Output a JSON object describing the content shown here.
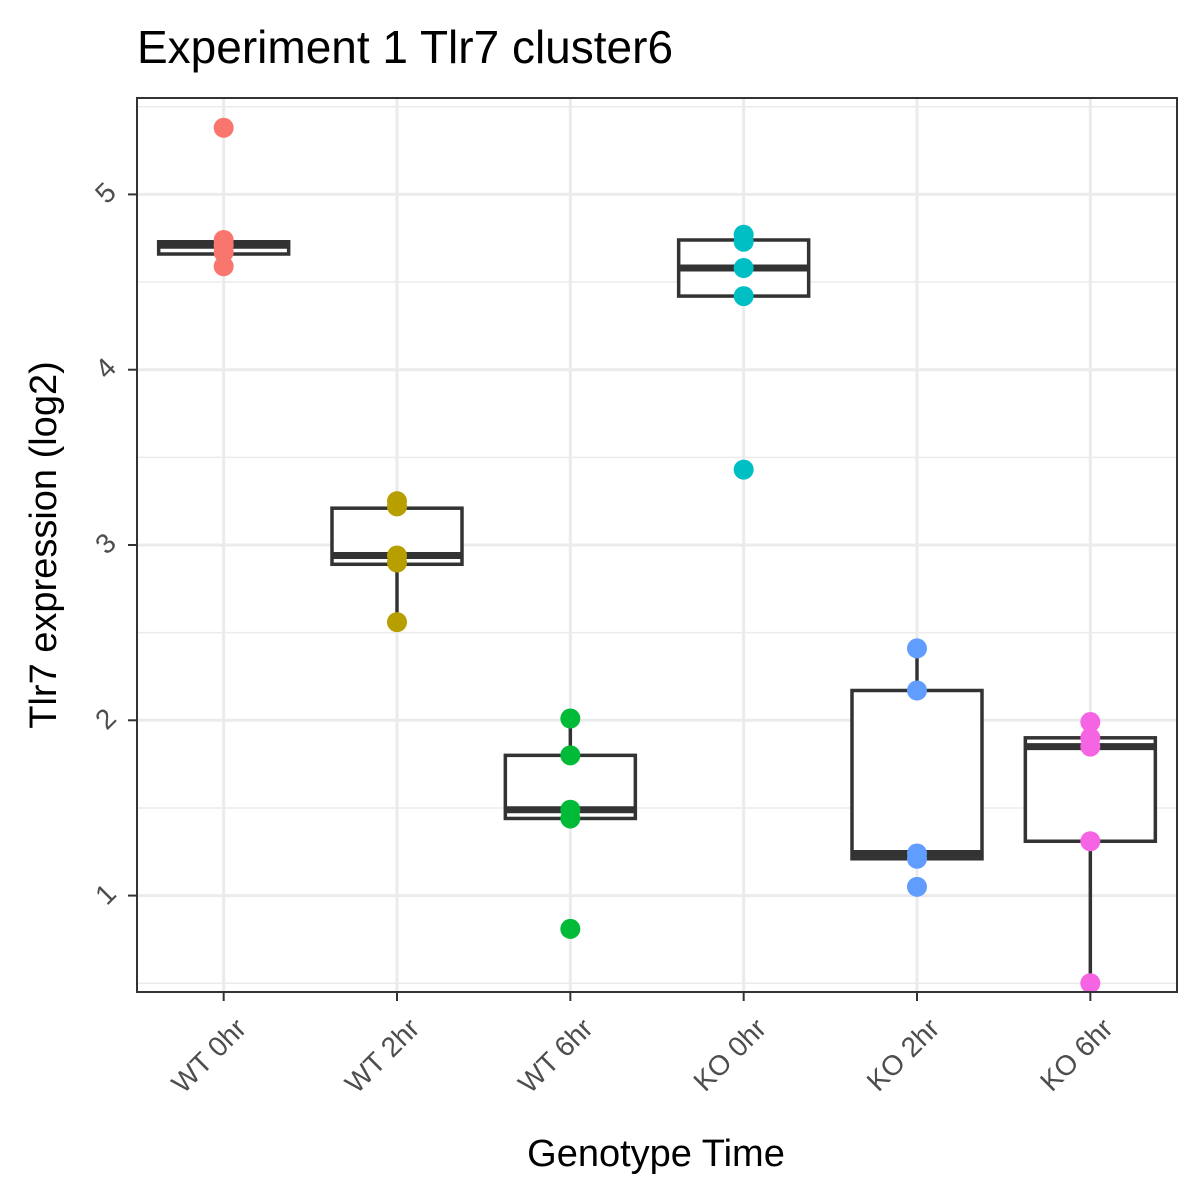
{
  "chart_data": {
    "type": "boxplot",
    "title": "Experiment 1 Tlr7 cluster6",
    "xlabel": "Genotype Time",
    "ylabel": "Tlr7 expression (log2)",
    "ylim": [
      0.45,
      5.55
    ],
    "y_ticks": [
      1,
      2,
      3,
      4,
      5
    ],
    "grid": true,
    "legend": "none",
    "categories": [
      "WT 0hr",
      "WT 2hr",
      "WT 6hr",
      "KO 0hr",
      "KO 2hr",
      "KO 6hr"
    ],
    "colors": [
      "#F8766D",
      "#B79F00",
      "#00BA38",
      "#00BFC4",
      "#619CFF",
      "#F564E3"
    ],
    "boxes": [
      {
        "q1": 4.66,
        "median": 4.71,
        "q3": 4.73,
        "whisker_low": 4.66,
        "whisker_high": 4.73
      },
      {
        "q1": 2.89,
        "median": 2.94,
        "q3": 3.21,
        "whisker_low": 2.56,
        "whisker_high": 3.25
      },
      {
        "q1": 1.44,
        "median": 1.49,
        "q3": 1.8,
        "whisker_low": 1.44,
        "whisker_high": 2.01
      },
      {
        "q1": 4.42,
        "median": 4.58,
        "q3": 4.74,
        "whisker_low": 4.42,
        "whisker_high": 4.77
      },
      {
        "q1": 1.21,
        "median": 1.24,
        "q3": 2.17,
        "whisker_low": 1.21,
        "whisker_high": 2.41
      },
      {
        "q1": 1.31,
        "median": 1.85,
        "q3": 1.9,
        "whisker_low": 0.5,
        "whisker_high": 1.9
      }
    ],
    "points": [
      [
        5.38,
        4.74,
        4.71,
        4.67,
        4.59
      ],
      [
        3.25,
        3.22,
        2.94,
        2.9,
        2.56
      ],
      [
        2.01,
        1.8,
        1.49,
        1.44,
        0.81
      ],
      [
        4.77,
        4.73,
        4.58,
        4.42,
        3.43
      ],
      [
        2.41,
        2.17,
        1.24,
        1.21,
        1.05
      ],
      [
        1.99,
        1.9,
        1.85,
        1.31,
        0.5
      ]
    ]
  }
}
